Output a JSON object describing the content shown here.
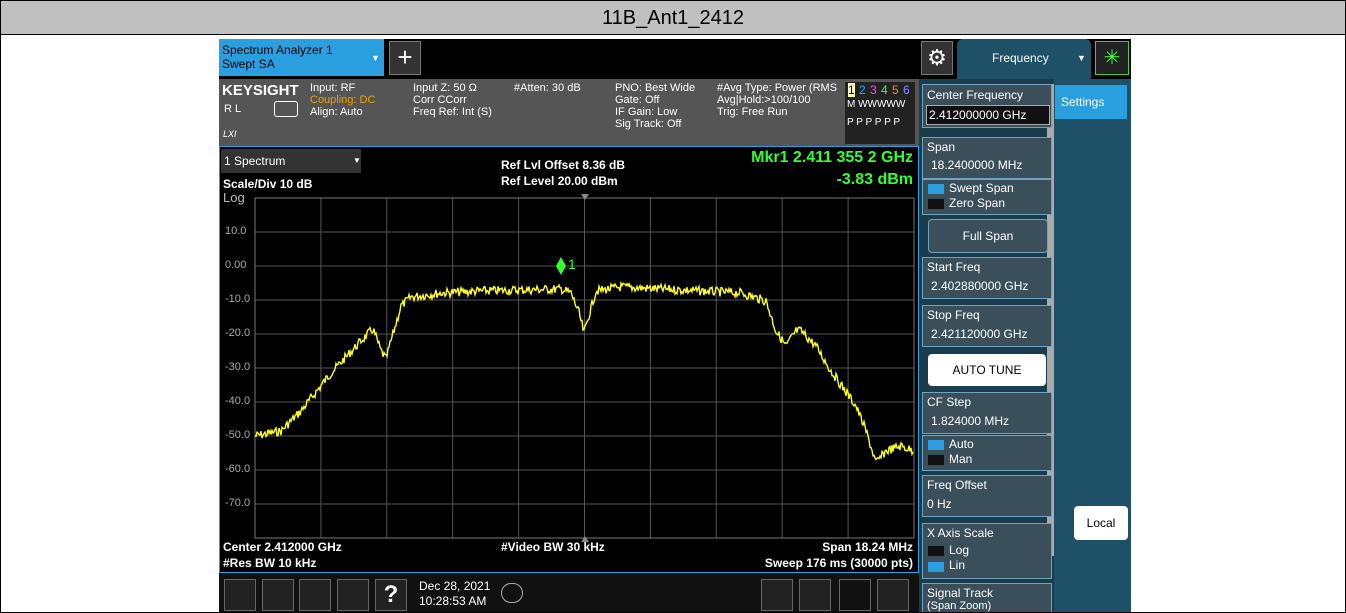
{
  "header": {
    "title": "11B_Ant1_2412"
  },
  "tabs": {
    "analyzer_line1": "Spectrum Analyzer 1",
    "analyzer_line2": "Swept SA",
    "plus": "+",
    "menu": "Frequency"
  },
  "info": {
    "brand": "KEYSIGHT",
    "rl": "R L",
    "lxi": "LXI",
    "col1": [
      "Input: RF",
      "Coupling: DC",
      "Align: Auto"
    ],
    "col2": [
      "Input Z: 50 Ω",
      "Corr CCorr",
      "Freq Ref: Int (S)"
    ],
    "col3": [
      "#Atten: 30 dB"
    ],
    "col4": [
      "PNO: Best Wide",
      "Gate: Off",
      "IF Gain: Low",
      "Sig Track: Off"
    ],
    "col5": [
      "#Avg Type: Power (RMS",
      "Avg|Hold:>100/100",
      "Trig: Free Run"
    ],
    "traces": [
      "1",
      "2",
      "3",
      "4",
      "5",
      "6"
    ],
    "trace_types": "M WWWWW",
    "trace_det": "P P P P P P"
  },
  "graph": {
    "window": "1 Spectrum",
    "scale": "Scale/Div 10 dB",
    "log": "Log",
    "ref_offset": "Ref Lvl Offset 8.36 dB",
    "ref_level": "Ref Level 20.00 dBm",
    "marker_freq": "Mkr1  2.411 355 2 GHz",
    "marker_level": "-3.83 dBm",
    "marker_label": "1",
    "y_labels": [
      "10.0",
      "0.00",
      "-10.0",
      "-20.0",
      "-30.0",
      "-40.0",
      "-50.0",
      "-60.0",
      "-70.0"
    ],
    "center": "Center 2.412000 GHz",
    "res_bw": "#Res BW 10 kHz",
    "video_bw": "#Video BW 30 kHz",
    "span": "Span 18.24 MHz",
    "sweep": "Sweep 176 ms (30000 pts)"
  },
  "taskbar": {
    "help": "?",
    "date": "Dec 28, 2021",
    "time": "10:28:53 AM"
  },
  "panel": {
    "center_freq_label": "Center Frequency",
    "center_freq": "2.412000000 GHz",
    "span_label": "Span",
    "span": "18.2400000 MHz",
    "swept_span": "Swept Span",
    "zero_span": "Zero Span",
    "full_span": "Full Span",
    "start_label": "Start Freq",
    "start": "2.402880000 GHz",
    "stop_label": "Stop Freq",
    "stop": "2.421120000 GHz",
    "auto_tune": "AUTO TUNE",
    "cf_step_label": "CF Step",
    "cf_step": "1.824000 MHz",
    "auto": "Auto",
    "man": "Man",
    "offset_label": "Freq Offset",
    "offset": "0 Hz",
    "x_scale_label": "X Axis Scale",
    "log": "Log",
    "lin": "Lin",
    "signal_track": "Signal Track",
    "span_zoom": "(Span Zoom)",
    "settings": "Settings",
    "local": "Local"
  }
}
